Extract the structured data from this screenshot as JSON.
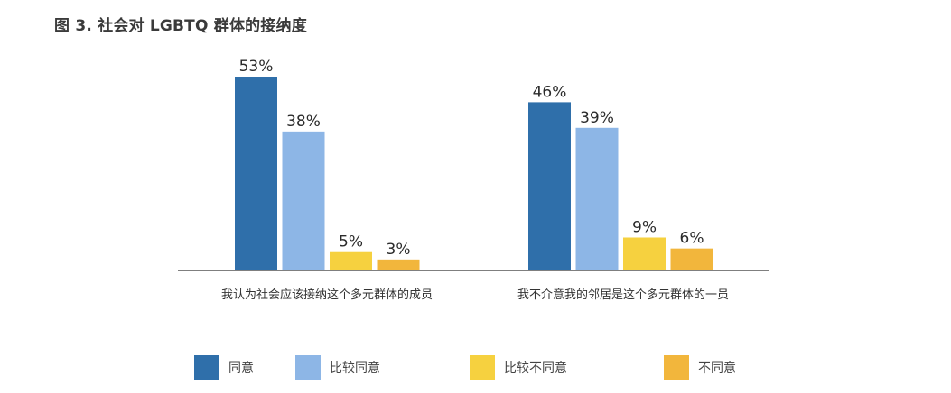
{
  "title": "图 3. 社会对 LGBTQ 群体的接纳度",
  "chart_data": {
    "type": "bar",
    "categories": [
      "我认为社会应该接纳这个多元群体的成员",
      "我不介意我的邻居是这个多元群体的一员"
    ],
    "series": [
      {
        "name": "同意",
        "values": [
          53,
          46
        ],
        "labels": [
          "53%",
          "46%"
        ],
        "color": "#2f6faa"
      },
      {
        "name": "比较同意",
        "values": [
          38,
          39
        ],
        "labels": [
          "38%",
          "39%"
        ],
        "color": "#8db6e6"
      },
      {
        "name": "比较不同意",
        "values": [
          5,
          9
        ],
        "labels": [
          "5%",
          "9%"
        ],
        "color": "#f6d13f"
      },
      {
        "name": "不同意",
        "values": [
          3,
          6
        ],
        "labels": [
          "3%",
          "6%"
        ],
        "color": "#f2b63c"
      }
    ],
    "ylim": [
      0,
      53
    ],
    "grid": false,
    "legend_position": "bottom"
  }
}
